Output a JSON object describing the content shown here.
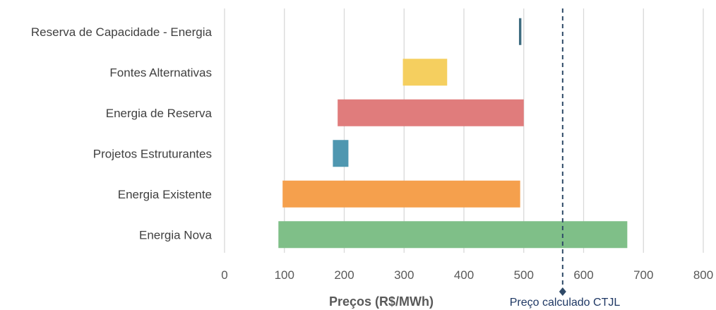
{
  "chart_data": {
    "type": "bar",
    "orientation": "horizontal",
    "subtype": "floating-range",
    "categories": [
      "Reserva de Capacidade - Energia",
      "Fontes Alternativas",
      "Energia de Reserva",
      "Projetos Estruturantes",
      "Energia Existente",
      "Energia Nova"
    ],
    "ranges": [
      {
        "min": 492,
        "max": 496,
        "color": "#3e6c80"
      },
      {
        "min": 298,
        "max": 372,
        "color": "#f5cf5f"
      },
      {
        "min": 189,
        "max": 500,
        "color": "#e07c7c"
      },
      {
        "min": 181,
        "max": 207,
        "color": "#4f97b0"
      },
      {
        "min": 97,
        "max": 494,
        "color": "#f5a04d"
      },
      {
        "min": 90,
        "max": 673,
        "color": "#7fbf88"
      }
    ],
    "xlabel": "Preços (R$/MWh)",
    "xlim": [
      0,
      800
    ],
    "xticks": [
      "0",
      "100",
      "200",
      "300",
      "400",
      "500",
      "600",
      "700",
      "800"
    ],
    "grid": true,
    "reference_line": {
      "value": 565,
      "label": "Preço calculado CTJL",
      "color": "#2f4a68",
      "style": "dashed"
    }
  }
}
